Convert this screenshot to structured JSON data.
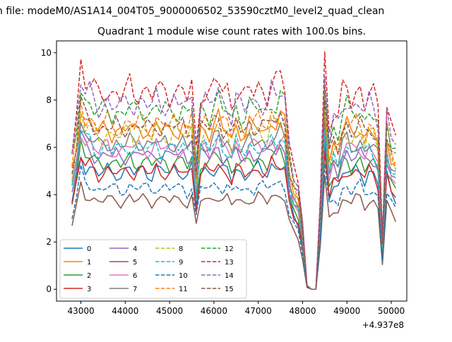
{
  "chart_data": {
    "type": "line",
    "suptitle": "n file: modeM0/AS1A14_004T05_9000006502_53590cztM0_level2_quad_clean",
    "title": "Quadrant 1 module wise count rates with 100.0s bins.",
    "xlabel": "",
    "ylabel": "",
    "x_offset_label": "+4.937e8",
    "xlim": [
      42450,
      50350
    ],
    "ylim": [
      -0.5,
      10.5
    ],
    "x_ticks": [
      43000,
      44000,
      45000,
      46000,
      47000,
      48000,
      49000,
      50000
    ],
    "x_tick_labels": [
      "43000",
      "44000",
      "45000",
      "46000",
      "47000",
      "48000",
      "49000",
      "50000"
    ],
    "y_ticks": [
      0,
      2,
      4,
      6,
      8,
      10
    ],
    "y_tick_labels": [
      "0",
      "2",
      "4",
      "6",
      "8",
      "10"
    ],
    "grid": false,
    "legend_position": "lower-left",
    "legend_columns": 4,
    "x": [
      42800,
      42900,
      43000,
      43100,
      43200,
      43300,
      43400,
      43500,
      43600,
      43700,
      43800,
      43900,
      44000,
      44100,
      44200,
      44300,
      44400,
      44500,
      44600,
      44700,
      44800,
      44900,
      45000,
      45100,
      45200,
      45300,
      45400,
      45500,
      45600,
      45700,
      45800,
      45900,
      46000,
      46100,
      46200,
      46300,
      46400,
      46500,
      46600,
      46700,
      46800,
      46900,
      47000,
      47100,
      47200,
      47300,
      47400,
      47500,
      47600,
      47700,
      47800,
      47900,
      48000,
      48100,
      48200,
      48300,
      48400,
      48500,
      48600,
      48700,
      48800,
      48900,
      49000,
      49100,
      49200,
      49300,
      49400,
      49500,
      49600,
      49700,
      49800,
      49900,
      50000,
      50100
    ],
    "series": [
      {
        "name": "0",
        "color": "#1f77b4",
        "style": "solid",
        "base": 5.0
      },
      {
        "name": "1",
        "color": "#ff7f0e",
        "style": "solid",
        "base": 6.8
      },
      {
        "name": "2",
        "color": "#2ca02c",
        "style": "solid",
        "base": 5.4
      },
      {
        "name": "3",
        "color": "#d62728",
        "style": "solid",
        "base": 5.0
      },
      {
        "name": "4",
        "color": "#9467bd",
        "style": "solid",
        "base": 5.7
      },
      {
        "name": "5",
        "color": "#8c564b",
        "style": "solid",
        "base": 3.8
      },
      {
        "name": "6",
        "color": "#e377c2",
        "style": "solid",
        "base": 6.0
      },
      {
        "name": "7",
        "color": "#7f7f7f",
        "style": "solid",
        "base": 6.2
      },
      {
        "name": "8",
        "color": "#bcbd22",
        "style": "dashed",
        "base": 6.6
      },
      {
        "name": "9",
        "color": "#17becf",
        "style": "dashed",
        "base": 6.0
      },
      {
        "name": "10",
        "color": "#1f77b4",
        "style": "dashed",
        "base": 4.3
      },
      {
        "name": "11",
        "color": "#ff7f0e",
        "style": "dashed",
        "base": 7.0
      },
      {
        "name": "12",
        "color": "#2ca02c",
        "style": "dashed",
        "base": 7.6
      },
      {
        "name": "13",
        "color": "#d62728",
        "style": "dashed",
        "base": 8.4
      },
      {
        "name": "14",
        "color": "#9467bd",
        "style": "dashed",
        "base": 7.9
      },
      {
        "name": "15",
        "color": "#8c564b",
        "style": "dashed",
        "base": 6.9
      }
    ],
    "profile": [
      0.72,
      0.9,
      1.14,
      1.04,
      1.04,
      1.0,
      0.97,
      0.99,
      1.01,
      0.98,
      0.99,
      0.97,
      0.99,
      1.02,
      0.98,
      1.0,
      1.01,
      0.99,
      0.97,
      1.02,
      0.99,
      1.0,
      0.98,
      1.01,
      0.99,
      1.0,
      0.96,
      1.02,
      0.7,
      0.99,
      1.01,
      0.98,
      1.02,
      1.05,
      0.99,
      1.0,
      0.93,
      1.02,
      0.98,
      0.96,
      1.01,
      0.99,
      1.02,
      1.0,
      0.98,
      1.05,
      1.03,
      1.06,
      1.02,
      0.74,
      0.62,
      0.56,
      0.34,
      0.02,
      0.0,
      0.0,
      0.48,
      1.18,
      0.8,
      0.9,
      0.86,
      0.98,
      1.01,
      0.96,
      1.0,
      1.01,
      0.93,
      0.99,
      0.97,
      0.9,
      0.28,
      0.95,
      0.83,
      0.78
    ]
  }
}
